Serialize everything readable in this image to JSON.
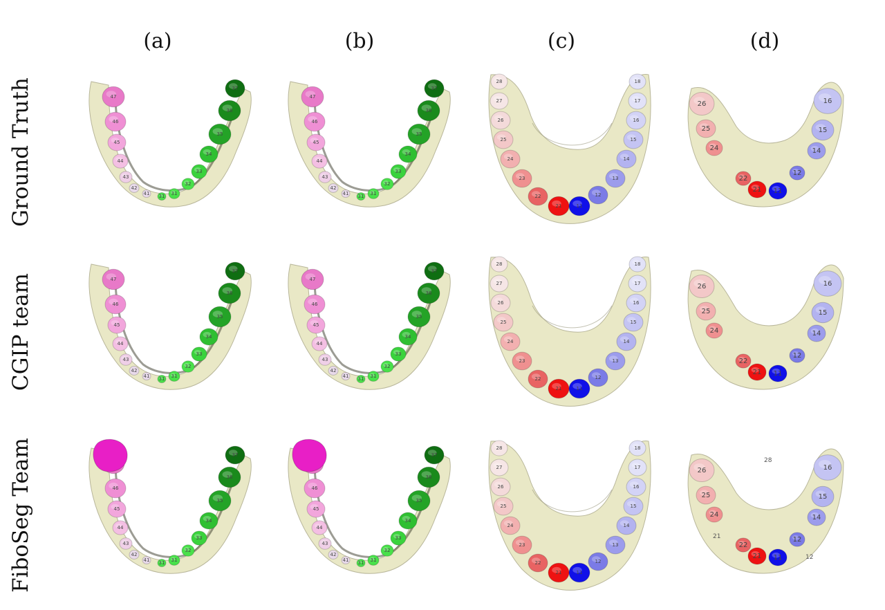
{
  "columns": [
    "(a)",
    "(b)",
    "(c)",
    "(d)"
  ],
  "rows": [
    "Ground Truth",
    "CGIP team",
    "FiboSeg Team"
  ],
  "colors": {
    "gum": "#e9e8c6",
    "gum_shadow": "#b8b69a",
    "lower_left_teeth": [
      "#e879c8",
      "#ef8fd4",
      "#f2a6dc",
      "#f4bfe3",
      "#efcfe7",
      "#e8d9ea"
    ],
    "lower_right_teeth": [
      "#0f6e12",
      "#1a8a1c",
      "#24a327",
      "#2fbf32",
      "#3ad23d",
      "#49e04a"
    ],
    "upper_left_teeth": [
      "#ee1212",
      "#e86363",
      "#ef9090",
      "#f2b0b0",
      "#f3c8c8",
      "#f4dada",
      "#f6e6e6"
    ],
    "upper_right_teeth": [
      "#1010e8",
      "#7b7be6",
      "#9c9cec",
      "#b3b3f0",
      "#c4c4f3",
      "#d3d3f6",
      "#e2e2f8"
    ],
    "fiboseg_error": "#e81fc6"
  },
  "panel_labels": {
    "lower_left": [
      "31",
      "32",
      "33",
      "34",
      "35",
      "36",
      "37"
    ],
    "lower_right": [
      "41",
      "42",
      "43",
      "44",
      "45",
      "46",
      "47"
    ],
    "upper_c_left": [
      "21",
      "22",
      "23",
      "24",
      "25",
      "26",
      "27",
      "28"
    ],
    "upper_c_right": [
      "11",
      "12",
      "13",
      "14",
      "15",
      "16",
      "17",
      "18"
    ],
    "upper_d_left": [
      "21",
      "22",
      "24",
      "25",
      "26"
    ],
    "upper_d_right": [
      "11",
      "12",
      "14",
      "15",
      "16"
    ],
    "fiboseg_d_extra": "28",
    "fiboseg_d_stray_left": "21",
    "fiboseg_d_stray_right": "12"
  }
}
